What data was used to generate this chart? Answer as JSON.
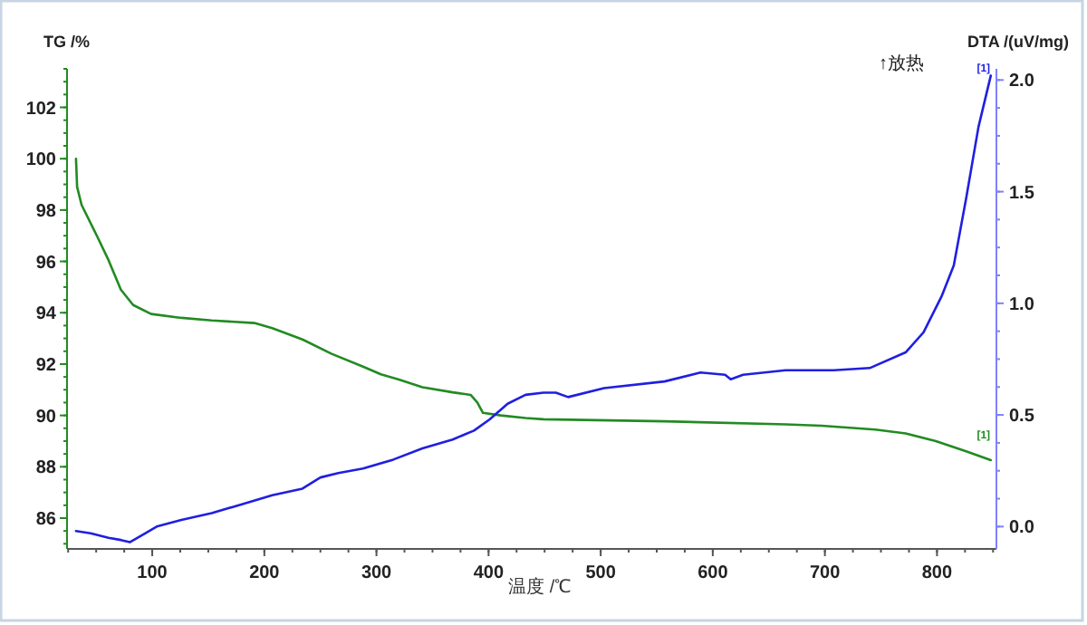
{
  "chart_data": {
    "type": "line",
    "xlabel": "温度 /℃",
    "ylabel": "TG /%",
    "y2label": "DTA /(uV/mg)",
    "xlim": [
      24,
      853
    ],
    "xticks": [
      100,
      200,
      300,
      400,
      500,
      600,
      700,
      800
    ],
    "ylim": [
      84.8,
      103.5
    ],
    "yticks": [
      86,
      88,
      90,
      92,
      94,
      96,
      98,
      100,
      102
    ],
    "y2lim": [
      -0.1,
      2.05
    ],
    "y2ticks": [
      {
        "value": 0,
        "label": "0.0"
      },
      0.5,
      {
        "value": 1,
        "label": "1.0"
      },
      1.5,
      {
        "value": 2,
        "label": "2.0"
      }
    ],
    "grid": false,
    "marker": "none",
    "line_style": "solid",
    "annotations": [
      "↑放热",
      "[1]",
      "[1]"
    ],
    "series": [
      {
        "color": "#228b22",
        "x": [
          32,
          33,
          37,
          50.6,
          61,
          72,
          83,
          99,
          126,
          153,
          191,
          207,
          234,
          260,
          288,
          304,
          320,
          341,
          368,
          384,
          390,
          395,
          411,
          433,
          449,
          557,
          665,
          697,
          745,
          772,
          799,
          826,
          848
        ],
        "values": [
          100.0,
          98.9,
          98.2,
          97.0,
          96.05,
          94.9,
          94.3,
          93.95,
          93.8,
          93.7,
          93.6,
          93.4,
          92.96,
          92.4,
          91.9,
          91.6,
          91.4,
          91.1,
          90.9,
          90.8,
          90.5,
          90.1,
          90.0,
          89.9,
          89.85,
          89.77,
          89.65,
          89.6,
          89.45,
          89.3,
          89.0,
          88.6,
          88.26
        ]
      },
      {
        "color": "#1f1fe0",
        "axis": "y2",
        "x": [
          32,
          45,
          61,
          72,
          80,
          94,
          104,
          126,
          153,
          180,
          207,
          234,
          250,
          266,
          288,
          315,
          341,
          368,
          387,
          401,
          417,
          433,
          449,
          460,
          471,
          503,
          557,
          589,
          611,
          616,
          627,
          665,
          708,
          740,
          772,
          788,
          804,
          815,
          826,
          837,
          848
        ],
        "values": [
          -0.02,
          -0.03,
          -0.05,
          -0.06,
          -0.07,
          -0.03,
          0.0,
          0.03,
          0.06,
          0.1,
          0.14,
          0.17,
          0.22,
          0.24,
          0.26,
          0.3,
          0.35,
          0.39,
          0.43,
          0.48,
          0.55,
          0.59,
          0.6,
          0.6,
          0.58,
          0.62,
          0.65,
          0.69,
          0.68,
          0.66,
          0.68,
          0.7,
          0.7,
          0.71,
          0.78,
          0.87,
          1.03,
          1.17,
          1.47,
          1.79,
          2.02
        ]
      }
    ]
  }
}
